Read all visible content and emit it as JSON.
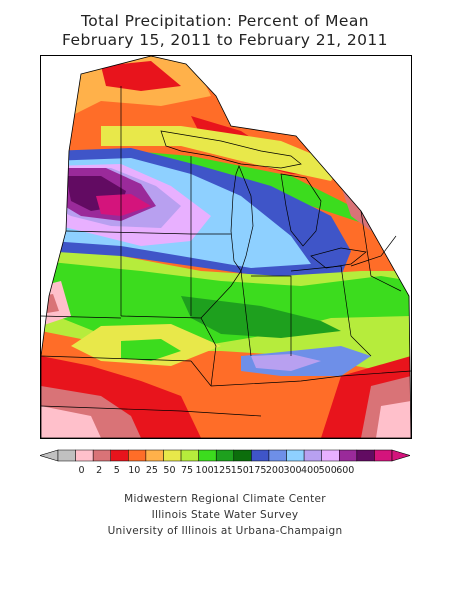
{
  "title": "Total Precipitation: Percent of Mean",
  "subtitle": "February 15, 2011 to February 21, 2011",
  "legend": {
    "labels": [
      "0",
      "2",
      "5",
      "10",
      "25",
      "50",
      "75",
      "100",
      "125",
      "150",
      "175",
      "200",
      "300",
      "400",
      "500",
      "600"
    ],
    "colors": [
      "#c0c0c0",
      "#ffc0cb",
      "#d97377",
      "#e8141c",
      "#ff6d28",
      "#ffb14a",
      "#e8e84a",
      "#b6ec3c",
      "#3cdc1e",
      "#1ea01e",
      "#0c6e0c",
      "#3f55c8",
      "#6e8fe8",
      "#8ed0ff",
      "#b8a0f0",
      "#e8b0ff",
      "#9a2a9a",
      "#620b62",
      "#d4147c"
    ]
  },
  "credits": {
    "line1": "Midwestern Regional Climate Center",
    "line2": "Illinois State Water Survey",
    "line3": "University of Illinois at Urbana-Champaign"
  }
}
